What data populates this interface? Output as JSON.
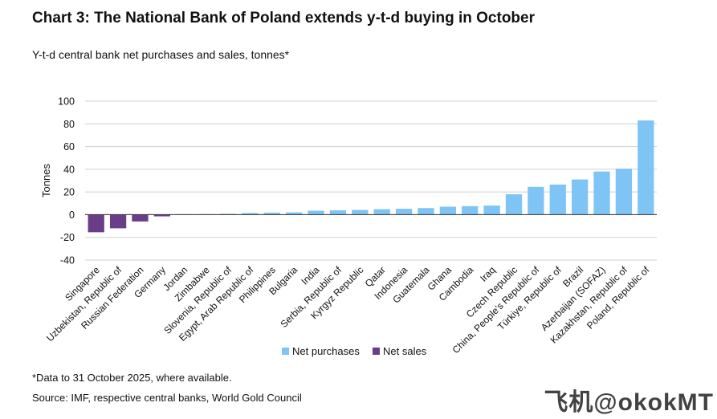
{
  "title": "Chart 3: The National Bank of Poland extends y-t-d buying in October",
  "subtitle": "Y-t-d central bank net purchases and sales, tonnes*",
  "footnote": "*Data to 31 October 2025, where available.",
  "source": "Source: IMF, respective central banks, World Gold Council",
  "watermark": "飞机@okokMT",
  "colors": {
    "purchase": "#7ec4f5",
    "sale": "#6a3d87",
    "grid": "#d0d0d0",
    "axis": "#333333"
  },
  "chart_data": {
    "type": "bar",
    "ylabel": "Tonnes",
    "ylim": [
      -40,
      100
    ],
    "yticks": [
      "100",
      "80",
      "60",
      "40",
      "20",
      "0",
      "-20",
      "-40"
    ],
    "grid": true,
    "legend_position": "bottom-center",
    "legend": [
      {
        "name": "Net purchases",
        "color": "#7ec4f5"
      },
      {
        "name": "Net sales",
        "color": "#6a3d87"
      }
    ],
    "categories": [
      "Singapore",
      "Uzbekistan, Republic of",
      "Russian Federation",
      "Germany",
      "Jordan",
      "Zimbabwe",
      "Slovenia, Republic of",
      "Egypt, Arab Republic of",
      "Philippines",
      "Bulgaria",
      "India",
      "Serbia, Republic of",
      "Kyrgyz Republic",
      "Qatar",
      "Indonesia",
      "Guatemala",
      "Ghana",
      "Cambodia",
      "Iraq",
      "Czech Republic",
      "China, People's Republic of",
      "Türkiye, Republic of",
      "Brazil",
      "Azerbaijan (SOFAZ)",
      "Kazakhstan, Republic of",
      "Poland, Republic of"
    ],
    "values": [
      -15.5,
      -12,
      -6,
      -1.5,
      0.4,
      0.5,
      0.8,
      1.5,
      1.8,
      2,
      3.5,
      3.8,
      4.2,
      4.8,
      5.2,
      5.8,
      7,
      7.5,
      8,
      18,
      24.5,
      26.5,
      31,
      38,
      40.5,
      83
    ]
  }
}
